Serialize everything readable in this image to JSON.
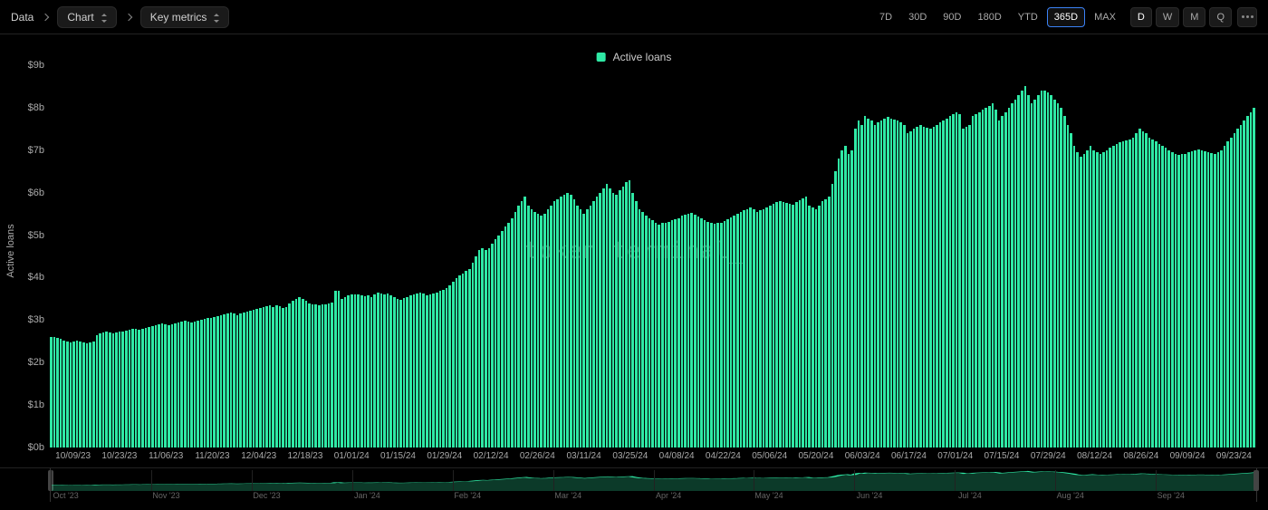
{
  "breadcrumb": {
    "root": "Data",
    "view_type": "Chart",
    "metric": "Key metrics"
  },
  "ranges": {
    "options": [
      "7D",
      "30D",
      "90D",
      "180D",
      "YTD",
      "365D",
      "MAX"
    ],
    "active_index": 5
  },
  "intervals": {
    "options": [
      "D",
      "W",
      "M",
      "Q"
    ],
    "active_index": 0
  },
  "chart": {
    "type": "bar",
    "legend_label": "Active loans",
    "y_axis_title": "Active loans",
    "watermark": "token terminal_",
    "series_color": "#2fe9a5",
    "background_color": "#000000",
    "text_color": "#aaaaaa",
    "ylim": [
      0,
      9
    ],
    "y_unit_prefix": "$",
    "y_unit_suffix": "b",
    "y_tick_step": 1,
    "x_tick_labels": [
      "10/09/23",
      "10/23/23",
      "11/06/23",
      "11/20/23",
      "12/04/23",
      "12/18/23",
      "01/01/24",
      "01/15/24",
      "01/29/24",
      "02/12/24",
      "02/26/24",
      "03/11/24",
      "03/25/24",
      "04/08/24",
      "04/22/24",
      "05/06/24",
      "05/20/24",
      "06/03/24",
      "06/17/24",
      "07/01/24",
      "07/15/24",
      "07/29/24",
      "08/12/24",
      "08/26/24",
      "09/09/24",
      "09/23/24"
    ],
    "values": [
      2.6,
      2.6,
      2.58,
      2.55,
      2.52,
      2.5,
      2.48,
      2.5,
      2.52,
      2.5,
      2.48,
      2.45,
      2.48,
      2.5,
      2.65,
      2.68,
      2.7,
      2.72,
      2.7,
      2.68,
      2.7,
      2.72,
      2.74,
      2.76,
      2.78,
      2.8,
      2.8,
      2.78,
      2.8,
      2.82,
      2.84,
      2.86,
      2.88,
      2.9,
      2.92,
      2.9,
      2.88,
      2.9,
      2.92,
      2.94,
      2.96,
      2.98,
      2.96,
      2.94,
      2.96,
      2.98,
      3.0,
      3.02,
      3.04,
      3.06,
      3.08,
      3.1,
      3.12,
      3.14,
      3.16,
      3.18,
      3.15,
      3.12,
      3.15,
      3.18,
      3.2,
      3.22,
      3.24,
      3.26,
      3.28,
      3.3,
      3.32,
      3.34,
      3.3,
      3.35,
      3.32,
      3.28,
      3.3,
      3.4,
      3.45,
      3.5,
      3.55,
      3.5,
      3.45,
      3.4,
      3.38,
      3.36,
      3.34,
      3.36,
      3.38,
      3.4,
      3.42,
      3.7,
      3.68,
      3.5,
      3.55,
      3.58,
      3.6,
      3.6,
      3.6,
      3.58,
      3.56,
      3.58,
      3.55,
      3.6,
      3.65,
      3.62,
      3.6,
      3.62,
      3.58,
      3.55,
      3.5,
      3.48,
      3.52,
      3.55,
      3.58,
      3.6,
      3.62,
      3.64,
      3.62,
      3.58,
      3.6,
      3.62,
      3.64,
      3.68,
      3.72,
      3.76,
      3.82,
      3.9,
      3.98,
      4.05,
      4.1,
      4.15,
      4.2,
      4.35,
      4.5,
      4.65,
      4.7,
      4.65,
      4.7,
      4.8,
      4.9,
      5.0,
      5.1,
      5.2,
      5.3,
      5.4,
      5.55,
      5.7,
      5.8,
      5.9,
      5.7,
      5.6,
      5.55,
      5.5,
      5.45,
      5.5,
      5.6,
      5.7,
      5.8,
      5.85,
      5.9,
      5.95,
      6.0,
      5.95,
      5.85,
      5.7,
      5.6,
      5.5,
      5.6,
      5.7,
      5.8,
      5.9,
      6.0,
      6.1,
      6.2,
      6.1,
      6.0,
      5.95,
      6.05,
      6.15,
      6.25,
      6.3,
      6.0,
      5.8,
      5.6,
      5.55,
      5.45,
      5.4,
      5.35,
      5.3,
      5.25,
      5.28,
      5.3,
      5.32,
      5.35,
      5.38,
      5.4,
      5.45,
      5.48,
      5.5,
      5.52,
      5.48,
      5.44,
      5.4,
      5.36,
      5.32,
      5.28,
      5.26,
      5.28,
      5.3,
      5.34,
      5.38,
      5.42,
      5.46,
      5.5,
      5.55,
      5.58,
      5.62,
      5.66,
      5.6,
      5.55,
      5.58,
      5.62,
      5.66,
      5.7,
      5.74,
      5.78,
      5.8,
      5.78,
      5.76,
      5.74,
      5.72,
      5.78,
      5.82,
      5.86,
      5.9,
      5.7,
      5.65,
      5.6,
      5.7,
      5.8,
      5.85,
      5.9,
      6.2,
      6.5,
      6.8,
      7.0,
      7.1,
      6.9,
      7.0,
      7.5,
      7.7,
      7.6,
      7.8,
      7.75,
      7.7,
      7.6,
      7.65,
      7.7,
      7.75,
      7.78,
      7.75,
      7.72,
      7.7,
      7.65,
      7.6,
      7.4,
      7.45,
      7.5,
      7.55,
      7.6,
      7.55,
      7.52,
      7.5,
      7.55,
      7.6,
      7.65,
      7.7,
      7.75,
      7.8,
      7.85,
      7.9,
      7.85,
      7.5,
      7.55,
      7.6,
      7.8,
      7.85,
      7.9,
      7.95,
      8.0,
      8.05,
      8.1,
      7.95,
      7.7,
      7.8,
      7.9,
      8.0,
      8.1,
      8.2,
      8.3,
      8.4,
      8.5,
      8.3,
      8.1,
      8.2,
      8.3,
      8.4,
      8.4,
      8.35,
      8.3,
      8.2,
      8.1,
      8.0,
      7.8,
      7.6,
      7.4,
      7.1,
      6.95,
      6.85,
      6.9,
      7.0,
      7.1,
      7.0,
      6.95,
      6.9,
      6.95,
      7.0,
      7.05,
      7.1,
      7.15,
      7.18,
      7.2,
      7.22,
      7.25,
      7.3,
      7.4,
      7.5,
      7.45,
      7.4,
      7.3,
      7.25,
      7.2,
      7.15,
      7.1,
      7.05,
      7.0,
      6.95,
      6.9,
      6.88,
      6.9,
      6.92,
      6.95,
      6.98,
      7.0,
      7.02,
      7.0,
      6.98,
      6.96,
      6.94,
      6.92,
      6.95,
      7.0,
      7.1,
      7.2,
      7.3,
      7.4,
      7.5,
      7.6,
      7.7,
      7.8,
      7.9,
      8.0
    ]
  },
  "brush": {
    "tick_labels": [
      "Oct '23",
      "Nov '23",
      "Dec '23",
      "Jan '24",
      "Feb '24",
      "Mar '24",
      "Apr '24",
      "May '24",
      "Jun '24",
      "Jul '24",
      "Aug '24",
      "Sep '24"
    ]
  }
}
